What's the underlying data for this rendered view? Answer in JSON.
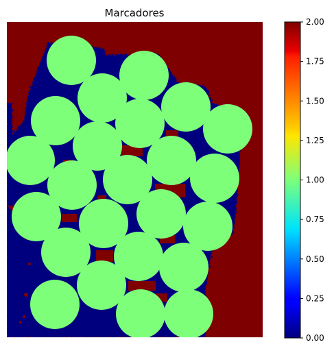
{
  "chart_data": {
    "type": "heatmap",
    "title": "Marcadores",
    "xlabel": "",
    "ylabel": "",
    "axes_visible": false,
    "colormap": "jet",
    "value_range": [
      0,
      2
    ],
    "classes": [
      {
        "value": 0,
        "color": "#00007f"
      },
      {
        "value": 1,
        "color": "#7dff7a"
      },
      {
        "value": 2,
        "color": "#7f0000"
      }
    ],
    "colorbar": {
      "ticks": [
        0.0,
        0.25,
        0.5,
        0.75,
        1.0,
        1.25,
        1.5,
        1.75,
        2.0
      ],
      "tick_labels": [
        "0.00",
        "0.25",
        "0.50",
        "0.75",
        "1.00",
        "1.25",
        "1.50",
        "1.75",
        "2.00"
      ]
    }
  }
}
